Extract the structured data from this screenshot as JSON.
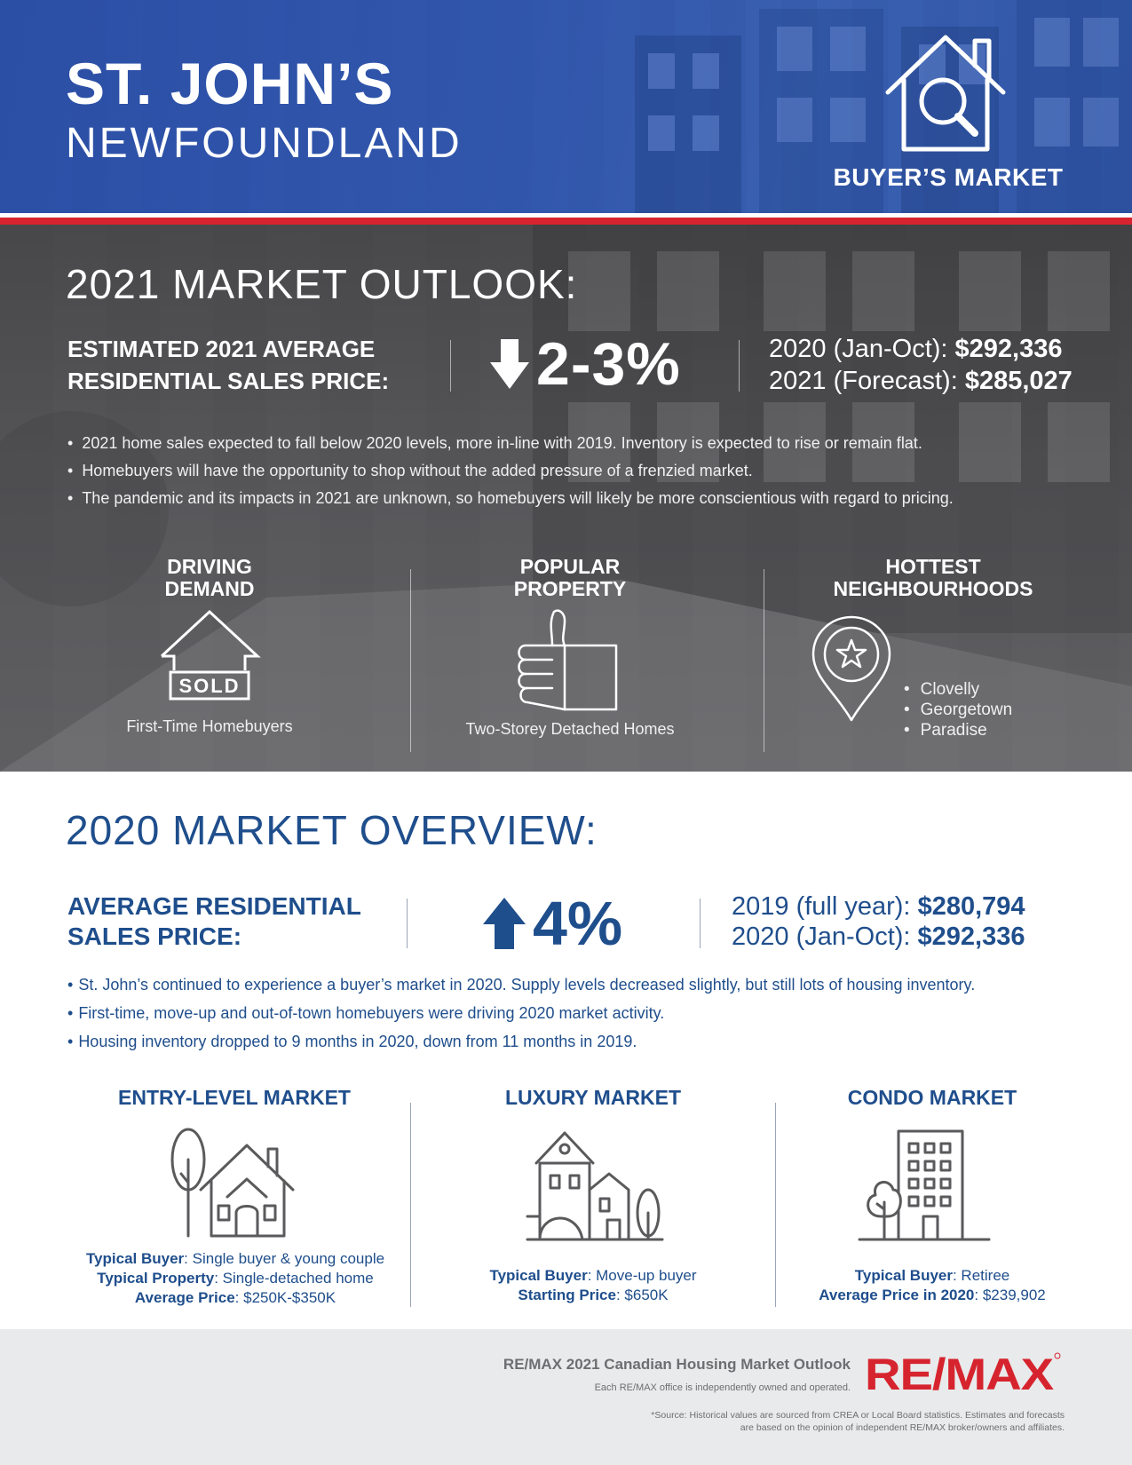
{
  "header": {
    "city": "ST. JOHN’S",
    "province": "NEWFOUNDLAND",
    "market_type": "BUYER’S MARKET",
    "market_icon": "house-magnifier-icon"
  },
  "outlook": {
    "title": "2021 MARKET OUTLOOK:",
    "price_label_line1": "ESTIMATED 2021 AVERAGE",
    "price_label_line2": "RESIDENTIAL SALES PRICE:",
    "change_direction": "down",
    "change_pct": "2-3%",
    "prior_label": "2020 (Jan-Oct):",
    "prior_value": "$292,336",
    "forecast_label": "2021 (Forecast):",
    "forecast_value": "$285,027",
    "bullets": [
      "2021 home sales expected to fall below 2020 levels, more in-line with 2019. Inventory is expected to rise or remain flat.",
      "Homebuyers will have the opportunity to shop without the added pressure of a frenzied market.",
      "The pandemic and its impacts in 2021 are unknown, so homebuyers will likely be more conscientious with regard to pricing."
    ],
    "driving_demand": {
      "title_line1": "DRIVING",
      "title_line2": "DEMAND",
      "icon": "house-sold-icon",
      "sold_label": "SOLD",
      "caption": "First-Time Homebuyers"
    },
    "popular_property": {
      "title_line1": "POPULAR",
      "title_line2": "PROPERTY",
      "icon": "thumbs-up-icon",
      "caption": "Two-Storey Detached Homes"
    },
    "hottest_neighbourhoods": {
      "title_line1": "HOTTEST",
      "title_line2": "NEIGHBOURHOODS",
      "icon": "map-pin-star-icon",
      "items": [
        "Clovelly",
        "Georgetown",
        "Paradise"
      ]
    }
  },
  "overview": {
    "title": "2020 MARKET OVERVIEW:",
    "price_label_line1": "AVERAGE RESIDENTIAL",
    "price_label_line2": "SALES PRICE:",
    "change_direction": "up",
    "change_pct": "4%",
    "prior_label": "2019 (full year):",
    "prior_value": "$280,794",
    "current_label": "2020 (Jan-Oct):",
    "current_value": "$292,336",
    "bullets": [
      "St. John’s continued to experience a buyer’s market in 2020. Supply levels decreased slightly, but still lots of housing inventory.",
      "First-time, move-up and out-of-town homebuyers were driving 2020 market activity.",
      "Housing inventory dropped to 9 months in 2020, down from 11 months in 2019."
    ],
    "entry": {
      "title": "ENTRY-LEVEL MARKET",
      "icon": "house-tree-icon",
      "buyer_label": "Typical Buyer",
      "buyer_value": ": Single buyer & young couple",
      "property_label": "Typical Property",
      "property_value": ": Single-detached home",
      "price_label": "Average Price",
      "price_value": ": $250K-$350K"
    },
    "luxury": {
      "title": "LUXURY MARKET",
      "icon": "luxury-home-icon",
      "buyer_label": "Typical Buyer",
      "buyer_value": ": Move-up buyer",
      "price_label": "Starting Price",
      "price_value": ": $650K"
    },
    "condo": {
      "title": "CONDO MARKET",
      "icon": "condo-building-icon",
      "buyer_label": "Typical Buyer",
      "buyer_value": ": Retiree",
      "price_label": "Average Price in 2020",
      "price_value": ": $239,902"
    }
  },
  "footer": {
    "title": "RE/MAX 2021 Canadian Housing Market Outlook",
    "independent": "Each RE/MAX office is independently owned and operated.",
    "source_line1": "*Source: Historical values are sourced from CREA or Local Board statistics. Estimates and forecasts",
    "source_line2": "are based on the opinion of independent RE/MAX broker/owners and affiliates.",
    "logo_text": "RE/MAX",
    "logo_icon": "remax-logo-icon"
  },
  "colors": {
    "brand_blue": "#1f4e8c",
    "header_blue": "#2f58ab",
    "remax_red": "#d6242f",
    "gray_section": "#5a5a5c",
    "footer_gray": "#e9eaeb"
  }
}
